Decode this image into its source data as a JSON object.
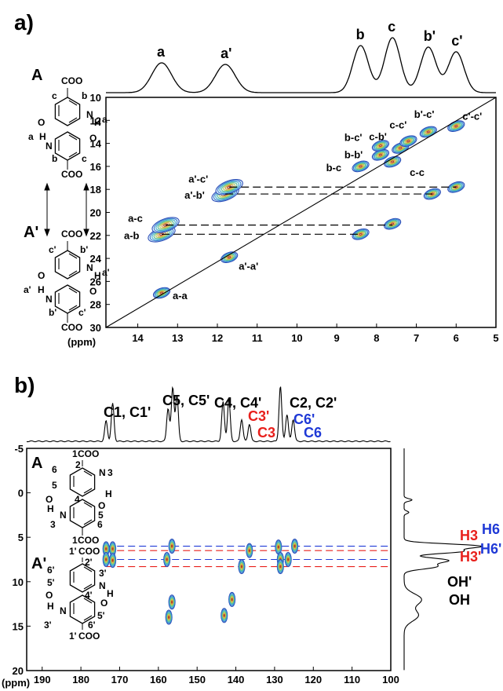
{
  "panel_a_label": "a)",
  "panel_b_label": "b)",
  "colors": {
    "contour": [
      "#2c4fb8",
      "#3a7fd0",
      "#46b1c8",
      "#5cc08a",
      "#b9c94d",
      "#d99a3a",
      "#b1432a"
    ],
    "red": "#e8201c",
    "blue": "#1f39d6",
    "black": "#000000"
  },
  "struct_a": {
    "A": "A",
    "Aprime": "A'",
    "coo": "COO",
    "labels_A": [
      "c",
      "b",
      "a",
      "a",
      "b",
      "c"
    ],
    "labels_Ap": [
      "c'",
      "b'",
      "a'",
      "a'",
      "b'",
      "c'"
    ],
    "o": "O",
    "n": "N",
    "h": "H"
  },
  "struct_b": {
    "A": "A",
    "Aprime": "A'",
    "coo": "COO",
    "o": "O",
    "n": "N",
    "h": "H",
    "nums_A": [
      "1",
      "2",
      "3",
      "4",
      "5",
      "6",
      "1"
    ],
    "nums_Ap": [
      "1'",
      "2'",
      "3'",
      "4'",
      "5'",
      "6'",
      "1'"
    ]
  },
  "chart_data": [
    {
      "type": "heatmap",
      "panel": "a)",
      "xlabel": "(ppm)",
      "xlim": [
        14.8,
        5.0
      ],
      "ylim": [
        10,
        30
      ],
      "xticks": [
        14,
        13,
        12,
        11,
        10,
        9,
        8,
        7,
        6,
        5
      ],
      "yticks": [
        10,
        12,
        14,
        16,
        18,
        20,
        22,
        24,
        26,
        28,
        30
      ],
      "projection_peaks": [
        {
          "label": "a",
          "x": 13.4
        },
        {
          "label": "a'",
          "x": 11.8
        },
        {
          "label": "b",
          "x": 8.4
        },
        {
          "label": "c",
          "x": 7.6
        },
        {
          "label": "b'",
          "x": 6.7
        },
        {
          "label": "c'",
          "x": 6.0
        }
      ],
      "cross_peaks": [
        {
          "label": "a-a",
          "x": 13.4,
          "y": 27.0
        },
        {
          "label": "a'-a'",
          "x": 11.7,
          "y": 23.9
        },
        {
          "label": "a-b",
          "x": 13.4,
          "y": 21.9
        },
        {
          "label": "a-c",
          "x": 13.3,
          "y": 21.1
        },
        {
          "label": "a'-b'",
          "x": 11.8,
          "y": 18.4
        },
        {
          "label": "a'-c'",
          "x": 11.7,
          "y": 17.8
        },
        {
          "label": "",
          "x": 8.4,
          "y": 21.9
        },
        {
          "label": "",
          "x": 7.6,
          "y": 21.0
        },
        {
          "label": "c-c",
          "x": 7.6,
          "y": 15.6
        },
        {
          "label": "b-c",
          "x": 8.4,
          "y": 16.0
        },
        {
          "label": "b-b'",
          "x": 7.9,
          "y": 15.0
        },
        {
          "label": "b-c'",
          "x": 7.9,
          "y": 14.2
        },
        {
          "label": "c-b'",
          "x": 7.4,
          "y": 14.4
        },
        {
          "label": "c-c'",
          "x": 7.2,
          "y": 13.8
        },
        {
          "label": "b'-c'",
          "x": 6.7,
          "y": 13.0
        },
        {
          "label": "c'-c'",
          "x": 6.0,
          "y": 12.5
        },
        {
          "label": "",
          "x": 6.6,
          "y": 18.4
        },
        {
          "label": "",
          "x": 6.0,
          "y": 17.8
        }
      ]
    },
    {
      "type": "heatmap",
      "panel": "b)",
      "xlabel": "(ppm)",
      "xlim": [
        194,
        100
      ],
      "ylim": [
        -5,
        20
      ],
      "xticks": [
        190,
        180,
        170,
        160,
        150,
        140,
        130,
        120,
        110,
        100
      ],
      "yticks": [
        -5,
        0,
        5,
        10,
        15,
        20
      ],
      "projection_labels": [
        {
          "text": "C1, C1'",
          "color": "black"
        },
        {
          "text": "C5, C5'",
          "color": "black"
        },
        {
          "text": "C4, C4'",
          "color": "black"
        },
        {
          "text": "C3'",
          "color": "red"
        },
        {
          "text": "C3",
          "color": "red"
        },
        {
          "text": "C2, C2'",
          "color": "black"
        },
        {
          "text": "C6'",
          "color": "blue"
        },
        {
          "text": "C6",
          "color": "blue"
        }
      ],
      "side_labels": [
        {
          "text": "H6",
          "y": 6.0,
          "color": "blue"
        },
        {
          "text": "H3",
          "y": 6.5,
          "color": "red"
        },
        {
          "text": "H6'",
          "y": 7.5,
          "color": "blue"
        },
        {
          "text": "H3'",
          "y": 8.3,
          "color": "red"
        },
        {
          "text": "OH'",
          "y": 12.0,
          "color": "black"
        },
        {
          "text": "OH",
          "y": 13.8,
          "color": "black"
        }
      ],
      "cross_peaks": [
        {
          "x": 173.5,
          "y": 6.3
        },
        {
          "x": 171.8,
          "y": 6.3
        },
        {
          "x": 173.5,
          "y": 7.5
        },
        {
          "x": 171.8,
          "y": 7.6
        },
        {
          "x": 156.5,
          "y": 6.0
        },
        {
          "x": 157.8,
          "y": 7.5
        },
        {
          "x": 136.5,
          "y": 6.5
        },
        {
          "x": 129.0,
          "y": 6.1
        },
        {
          "x": 124.8,
          "y": 6.0
        },
        {
          "x": 128.5,
          "y": 7.5
        },
        {
          "x": 126.5,
          "y": 7.5
        },
        {
          "x": 138.5,
          "y": 8.3
        },
        {
          "x": 128.5,
          "y": 8.3
        },
        {
          "x": 156.5,
          "y": 12.3
        },
        {
          "x": 157.3,
          "y": 14.0
        },
        {
          "x": 141.0,
          "y": 12.0
        },
        {
          "x": 143.0,
          "y": 13.8
        }
      ],
      "dashed_lines": [
        {
          "y": 6.0,
          "x1": 173.5,
          "x2": 124.8,
          "color": "blue"
        },
        {
          "y": 6.5,
          "x1": 173.5,
          "x2": 124.0,
          "color": "red"
        },
        {
          "y": 7.5,
          "x1": 173.5,
          "x2": 124.0,
          "color": "blue"
        },
        {
          "y": 8.3,
          "x1": 173.5,
          "x2": 124.0,
          "color": "red"
        }
      ]
    }
  ]
}
